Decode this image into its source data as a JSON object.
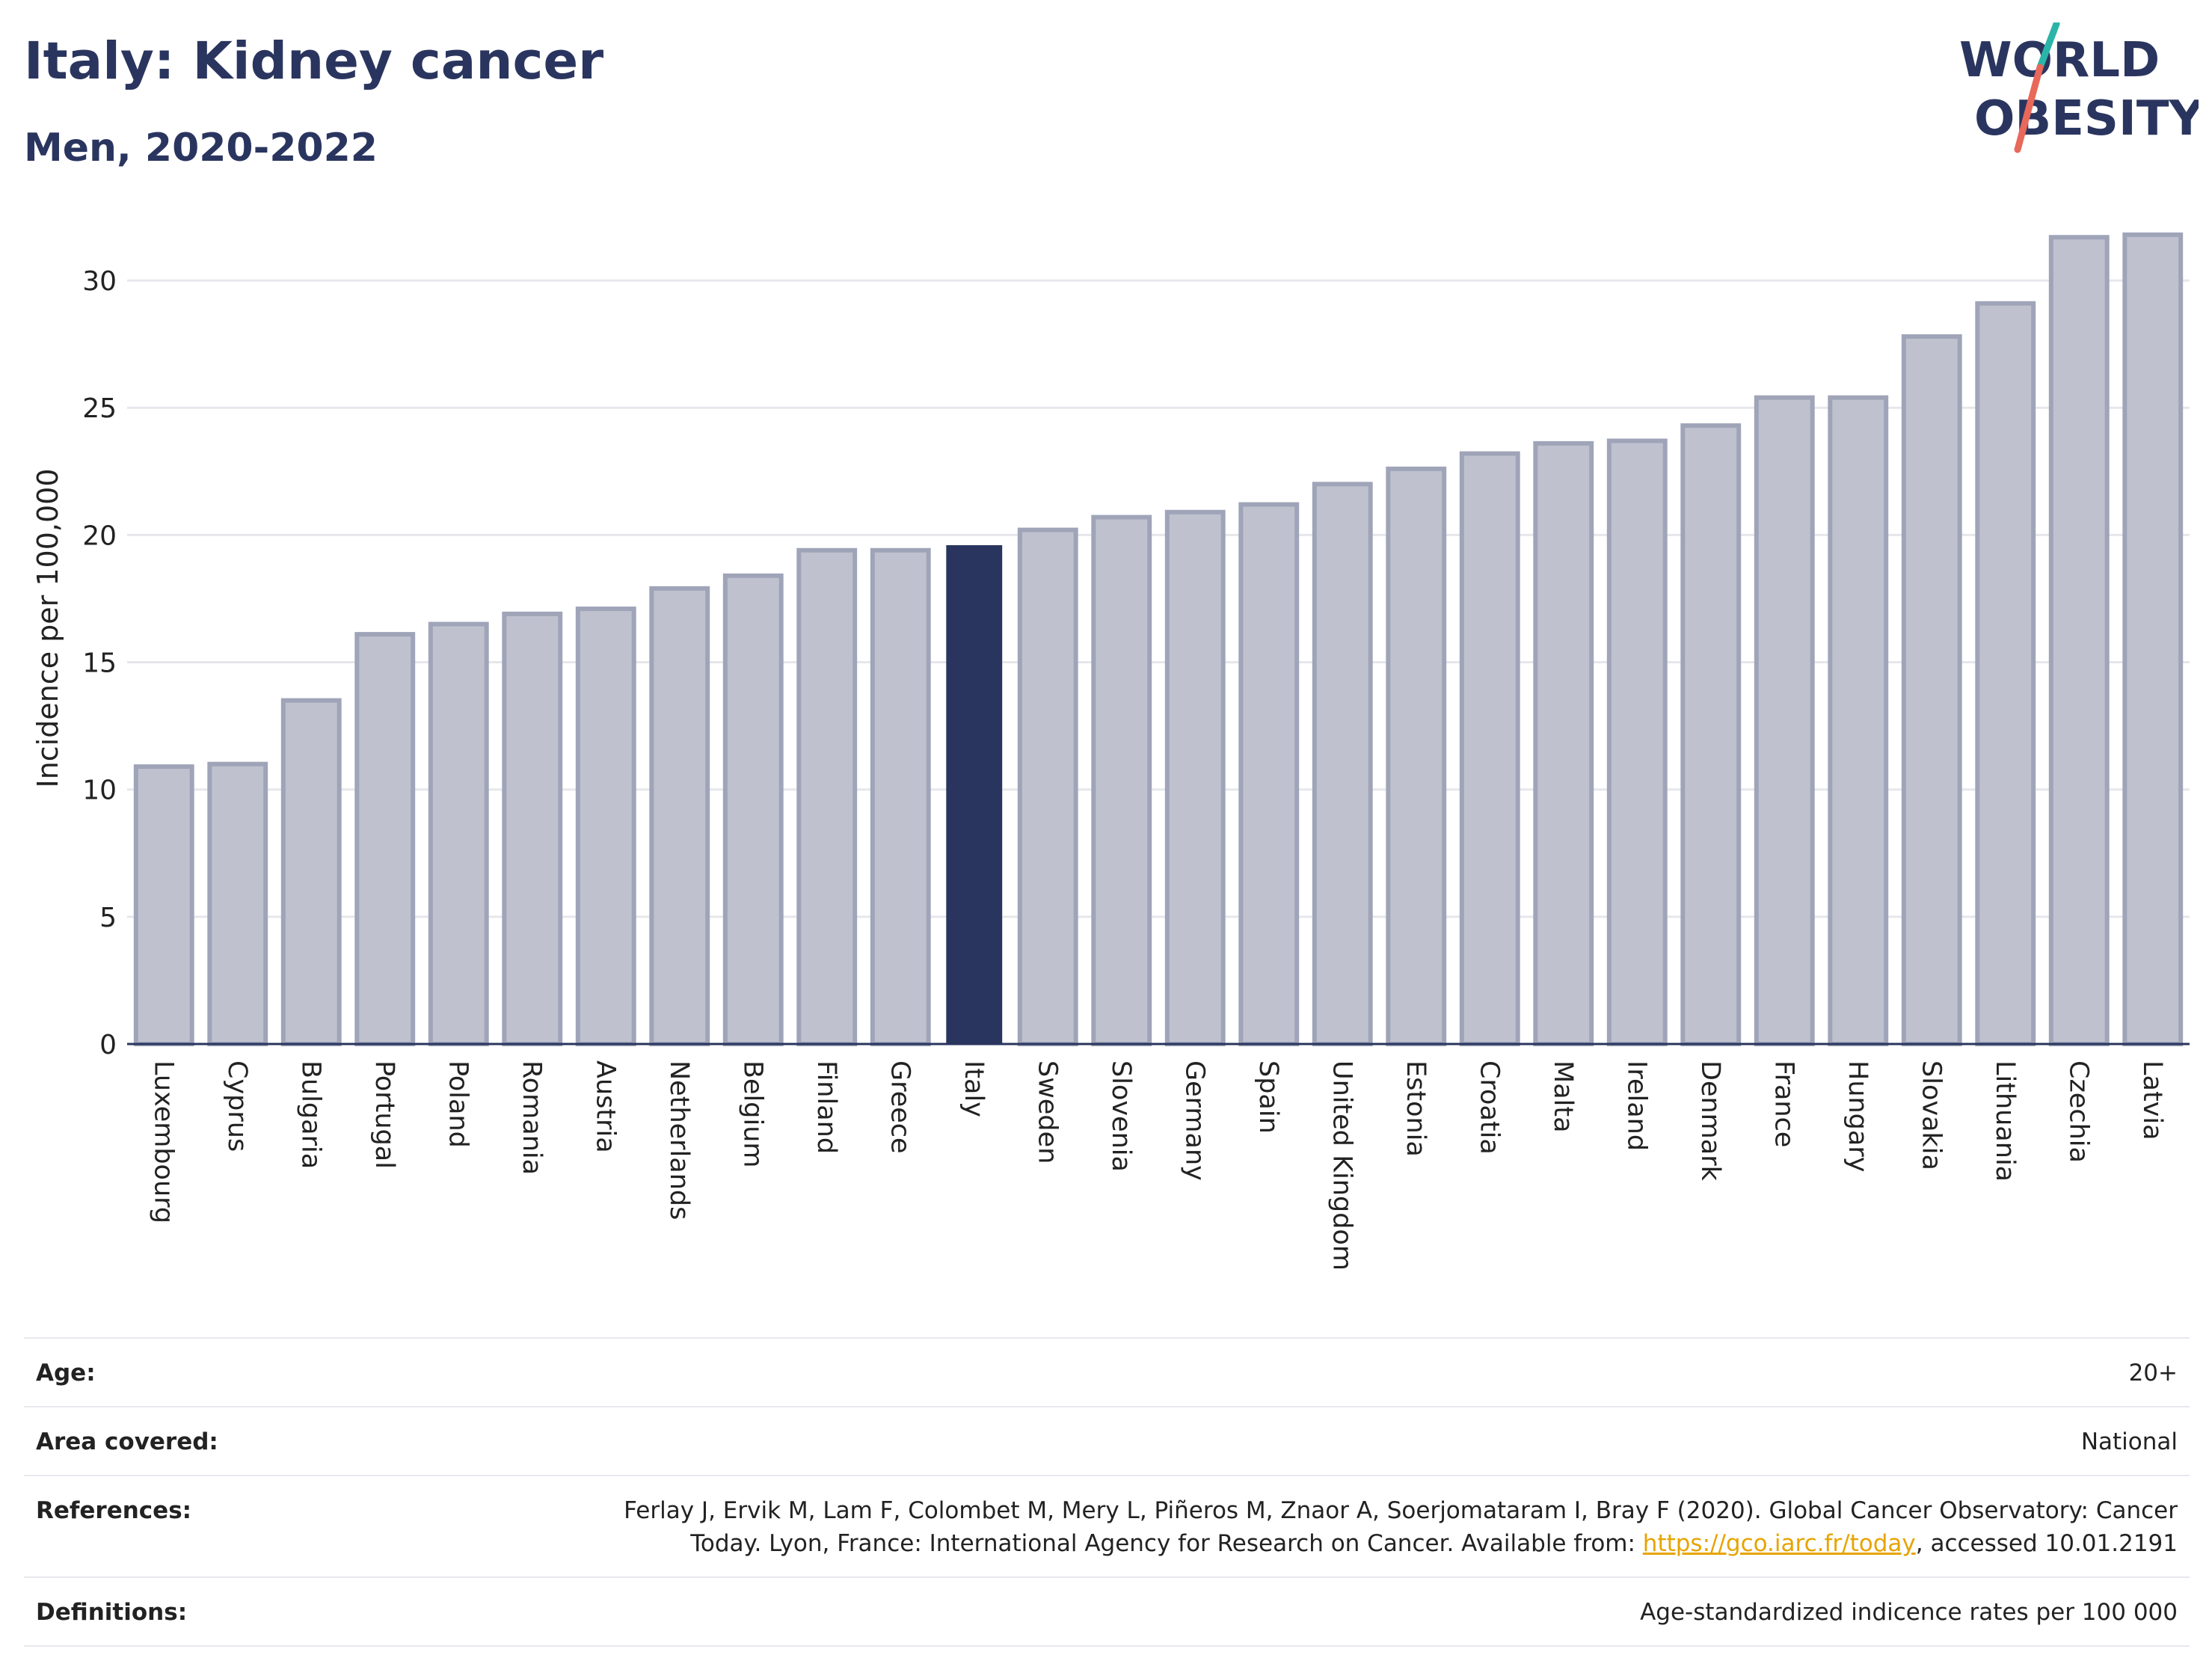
{
  "title": "Italy: Kidney cancer",
  "subtitle": "Men, 2020-2022",
  "logo": {
    "line1": "WORLD",
    "line2": "OBESITY",
    "text_color": "#2a355f",
    "slash_color_top": "#2bb5a8",
    "slash_color_bottom": "#e8685a"
  },
  "chart_data": {
    "type": "bar",
    "ylabel": "Incidence per 100,000",
    "ylim": [
      0,
      32.5
    ],
    "yticks": [
      0,
      5,
      10,
      15,
      20,
      25,
      30
    ],
    "grid": true,
    "highlight": "Italy",
    "colors": {
      "bar": "#bfc2ce",
      "bar_stroke": "#9fa4b8",
      "highlight": "#2a355f",
      "grid": "#e6e7ec",
      "axis": "#2a355f"
    },
    "categories": [
      "Luxembourg",
      "Cyprus",
      "Bulgaria",
      "Portugal",
      "Poland",
      "Romania",
      "Austria",
      "Netherlands",
      "Belgium",
      "Finland",
      "Greece",
      "Italy",
      "Sweden",
      "Slovenia",
      "Germany",
      "Spain",
      "United Kingdom",
      "Estonia",
      "Croatia",
      "Malta",
      "Ireland",
      "Denmark",
      "France",
      "Hungary",
      "Slovakia",
      "Lithuania",
      "Czechia",
      "Latvia"
    ],
    "values": [
      10.9,
      11.0,
      13.5,
      16.1,
      16.5,
      16.9,
      17.1,
      17.9,
      18.4,
      19.4,
      19.4,
      19.6,
      20.2,
      20.7,
      20.9,
      21.2,
      22.0,
      22.6,
      23.2,
      23.6,
      23.7,
      24.3,
      25.4,
      25.4,
      27.8,
      29.1,
      31.7,
      31.8
    ]
  },
  "meta": {
    "age_label": "Age:",
    "age_value": "20+",
    "area_label": "Area covered:",
    "area_value": "National",
    "references_label": "References:",
    "references_line1": "Ferlay J, Ervik M, Lam F, Colombet M, Mery L, Piñeros M, Znaor A, Soerjomataram I, Bray F (2020). Global Cancer Observatory: Cancer",
    "references_line2_pre": "Today. Lyon, France: International Agency for Research on Cancer. Available from: ",
    "references_link": "https://gco.iarc.fr/today",
    "references_line2_post": ", accessed 10.01.2191",
    "definitions_label": "Definitions:",
    "definitions_value": "Age-standardized indicence rates per 100 000"
  }
}
